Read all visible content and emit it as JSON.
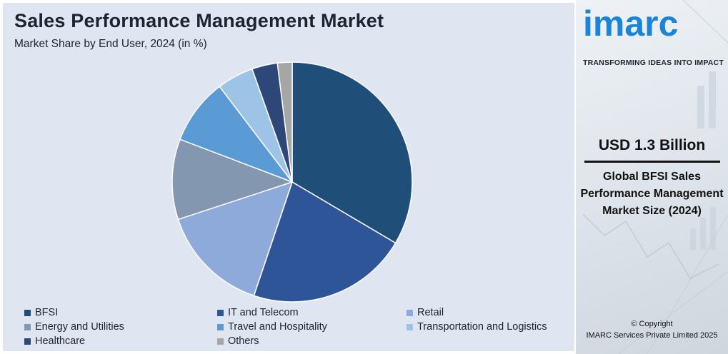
{
  "header": {
    "title": "Sales Performance Management Market",
    "subtitle": "Market Share by End User, 2024 (in %)"
  },
  "chart_data": {
    "type": "pie",
    "title": "Sales Performance Management Market",
    "subtitle": "Market Share by End User, 2024 (in %)",
    "categories": [
      "BFSI",
      "IT and Telecom",
      "Retail",
      "Energy and Utilities",
      "Travel and Hospitality",
      "Transportation and Logistics",
      "Healthcare",
      "Others"
    ],
    "values": [
      34,
      22,
      15,
      11,
      9,
      5,
      3.5,
      2
    ],
    "colors": [
      "#1f4e79",
      "#2e5597",
      "#8eaadb",
      "#8497b0",
      "#5b9bd5",
      "#9dc3e6",
      "#2d4778",
      "#a6a6a6"
    ],
    "legend_position": "bottom"
  },
  "legend": {
    "items": [
      {
        "label": "BFSI",
        "color": "#1f4e79"
      },
      {
        "label": "IT and Telecom",
        "color": "#2e5597"
      },
      {
        "label": "Retail",
        "color": "#8eaadb"
      },
      {
        "label": "Energy and Utilities",
        "color": "#8497b0"
      },
      {
        "label": "Travel and Hospitality",
        "color": "#5b9bd5"
      },
      {
        "label": "Transportation and Logistics",
        "color": "#9dc3e6"
      },
      {
        "label": "Healthcare",
        "color": "#2d4778"
      },
      {
        "label": "Others",
        "color": "#a6a6a6"
      }
    ]
  },
  "brand": {
    "logo_text": "imarc",
    "tagline": "TRANSFORMING IDEAS INTO IMPACT",
    "accent_color": "#1c84d6"
  },
  "stat": {
    "value": "USD 1.3 Billion",
    "description": "Global BFSI Sales Performance Management Market Size (2024)"
  },
  "footer": {
    "copyright_line1": "© Copyright",
    "copyright_line2": "IMARC Services Private Limited 2025"
  }
}
